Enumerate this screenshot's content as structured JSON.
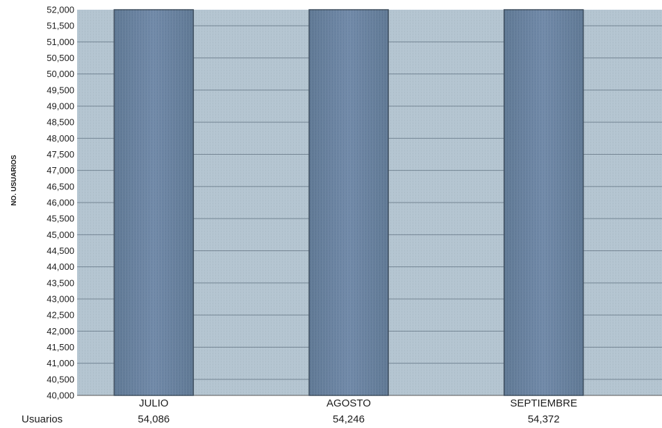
{
  "chart_data": {
    "type": "bar",
    "title": "",
    "ylabel": "NO. USUARIOS",
    "xlabel": "",
    "categories": [
      "JULIO",
      "AGOSTO",
      "SEPTIEMBRE"
    ],
    "series": [
      {
        "name": "Usuarios",
        "values": [
          54086,
          54246,
          54372
        ],
        "value_labels": [
          "54,086",
          "54,246",
          "54,372"
        ]
      }
    ],
    "ylim": [
      40000,
      52000
    ],
    "y_ticks": [
      40000,
      40500,
      41000,
      41500,
      42000,
      42500,
      43000,
      43500,
      44000,
      44500,
      45000,
      45500,
      46000,
      46500,
      47000,
      47500,
      48000,
      48500,
      49000,
      49500,
      50000,
      50500,
      51000,
      51500,
      52000
    ],
    "y_tick_labels": [
      "40,000",
      "40,500",
      "41,000",
      "41,500",
      "42,000",
      "42,500",
      "43,000",
      "43,500",
      "44,000",
      "44,500",
      "45,000",
      "45,500",
      "46,000",
      "46,500",
      "47,000",
      "47,500",
      "48,000",
      "48,500",
      "49,000",
      "49,500",
      "50,000",
      "50,500",
      "51,000",
      "51,500",
      "52,000"
    ],
    "grid": true,
    "legend": "none",
    "data_table": true,
    "colors": {
      "plot_background": "#b3c4d0",
      "bar_fill": "#6f87a6",
      "bar_stroke": "#3e4e5e",
      "grid_line": "#3e4e5e"
    }
  }
}
